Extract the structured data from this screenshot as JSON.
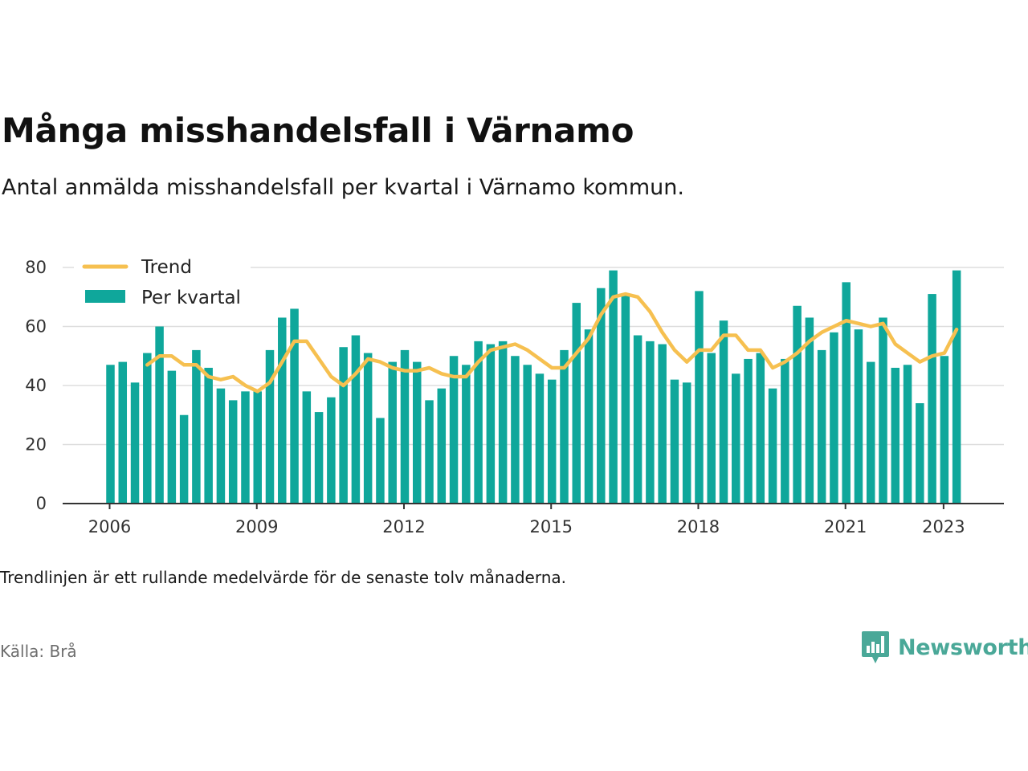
{
  "title": "Många misshandelsfall i Värnamo",
  "subtitle": "Antal anmälda misshandelsfall per kvartal i Värnamo kommun.",
  "footnote": "Trendlinjen är ett rullande medelvärde för de senaste tolv månaderna.",
  "source": "Källa: Brå",
  "brand": "Newsworthy",
  "colors": {
    "bar": "#0fa79b",
    "trend": "#f6c050",
    "grid": "#dddddd",
    "axis": "#333333",
    "brand": "#4aa898"
  },
  "chart_data": {
    "type": "bar",
    "ylim": [
      0,
      80
    ],
    "yticks": [
      0,
      20,
      40,
      60,
      80
    ],
    "xticks": [
      "2006",
      "2009",
      "2012",
      "2015",
      "2018",
      "2021",
      "2023"
    ],
    "grid": true,
    "legend_position": "top-left",
    "x_start": "2006 Q1",
    "series": [
      {
        "name": "Per kvartal",
        "type": "bar",
        "values": [
          47,
          48,
          41,
          51,
          60,
          45,
          30,
          52,
          46,
          39,
          35,
          38,
          38,
          52,
          63,
          66,
          38,
          31,
          36,
          53,
          57,
          51,
          29,
          48,
          52,
          48,
          35,
          39,
          50,
          47,
          55,
          54,
          55,
          50,
          47,
          44,
          42,
          52,
          68,
          59,
          73,
          79,
          71,
          57,
          55,
          54,
          42,
          41,
          72,
          51,
          62,
          44,
          49,
          51,
          39,
          49,
          67,
          63,
          52,
          58,
          75,
          59,
          48,
          63,
          46,
          47,
          34,
          71,
          50,
          79
        ]
      },
      {
        "name": "Trend",
        "type": "line",
        "values": [
          null,
          null,
          null,
          47,
          50,
          50,
          47,
          47,
          43,
          42,
          43,
          40,
          38,
          41,
          48,
          55,
          55,
          49,
          43,
          40,
          44,
          49,
          48,
          46,
          45,
          45,
          46,
          44,
          43,
          43,
          48,
          52,
          53,
          54,
          52,
          49,
          46,
          46,
          51,
          56,
          64,
          70,
          71,
          70,
          65,
          58,
          52,
          48,
          52,
          52,
          57,
          57,
          52,
          52,
          46,
          48,
          51,
          55,
          58,
          60,
          62,
          61,
          60,
          61,
          54,
          51,
          48,
          50,
          51,
          59
        ]
      }
    ]
  }
}
